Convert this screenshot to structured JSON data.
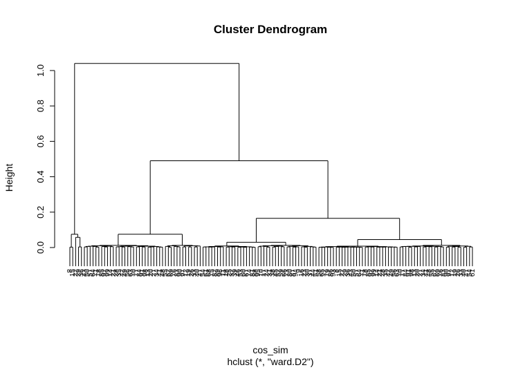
{
  "chart_data": {
    "type": "dendrogram",
    "title": "Cluster Dendrogram",
    "ylabel": "Height",
    "xlabel": "cos_sim",
    "subtitle": "hclust (*, \"ward.D2\")",
    "ylim": [
      0,
      1.04
    ],
    "y_ticks": [
      "0.0",
      "0.2",
      "0.4",
      "0.6",
      "0.8",
      "1.0"
    ],
    "y_tick_values": [
      0,
      0.2,
      0.4,
      0.6,
      0.8,
      1.0
    ],
    "leaf_count": 140,
    "leaf_label_glyphs": "1234567890",
    "leaf_label_marks": [
      "8",
      "9",
      "10",
      "11",
      "12",
      "13",
      "14",
      "15",
      "16",
      "17",
      "18",
      "19",
      "20",
      "21",
      "22",
      "23",
      "24",
      "25",
      "26",
      "27",
      "28",
      "29",
      "30",
      "31",
      "32",
      "33",
      "34",
      "35",
      "36",
      "37",
      "38",
      "39",
      "40",
      "41",
      "42",
      "43",
      "44",
      "45",
      "46",
      "47",
      "48",
      "49",
      "50",
      "51",
      "52",
      "53",
      "54",
      "55",
      "56",
      "57",
      "58",
      "59",
      "60",
      "61",
      "62",
      "63",
      "64",
      "65",
      "66",
      "67",
      "68",
      "69",
      "70",
      "71",
      "72",
      "73",
      "74",
      "75",
      "76",
      "77",
      "78",
      "79",
      "80",
      "81",
      "82",
      "83",
      "84",
      "85",
      "86",
      "87",
      "88",
      "89",
      "90",
      "91",
      "92",
      "93",
      "94",
      "95",
      "96",
      "97",
      "98",
      "99"
    ],
    "merges": [
      {
        "name": "root",
        "height": 1.04
      },
      {
        "name": "small-cluster",
        "height": 0.075
      },
      {
        "name": "main-cluster",
        "height": 0.49
      },
      {
        "name": "left-subcluster",
        "height": 0.075
      },
      {
        "name": "right-subcluster",
        "height": 0.165
      },
      {
        "name": "right-left-branch",
        "height": 0.03
      },
      {
        "name": "right-right-branch",
        "height": 0.045
      }
    ],
    "grid": false
  }
}
